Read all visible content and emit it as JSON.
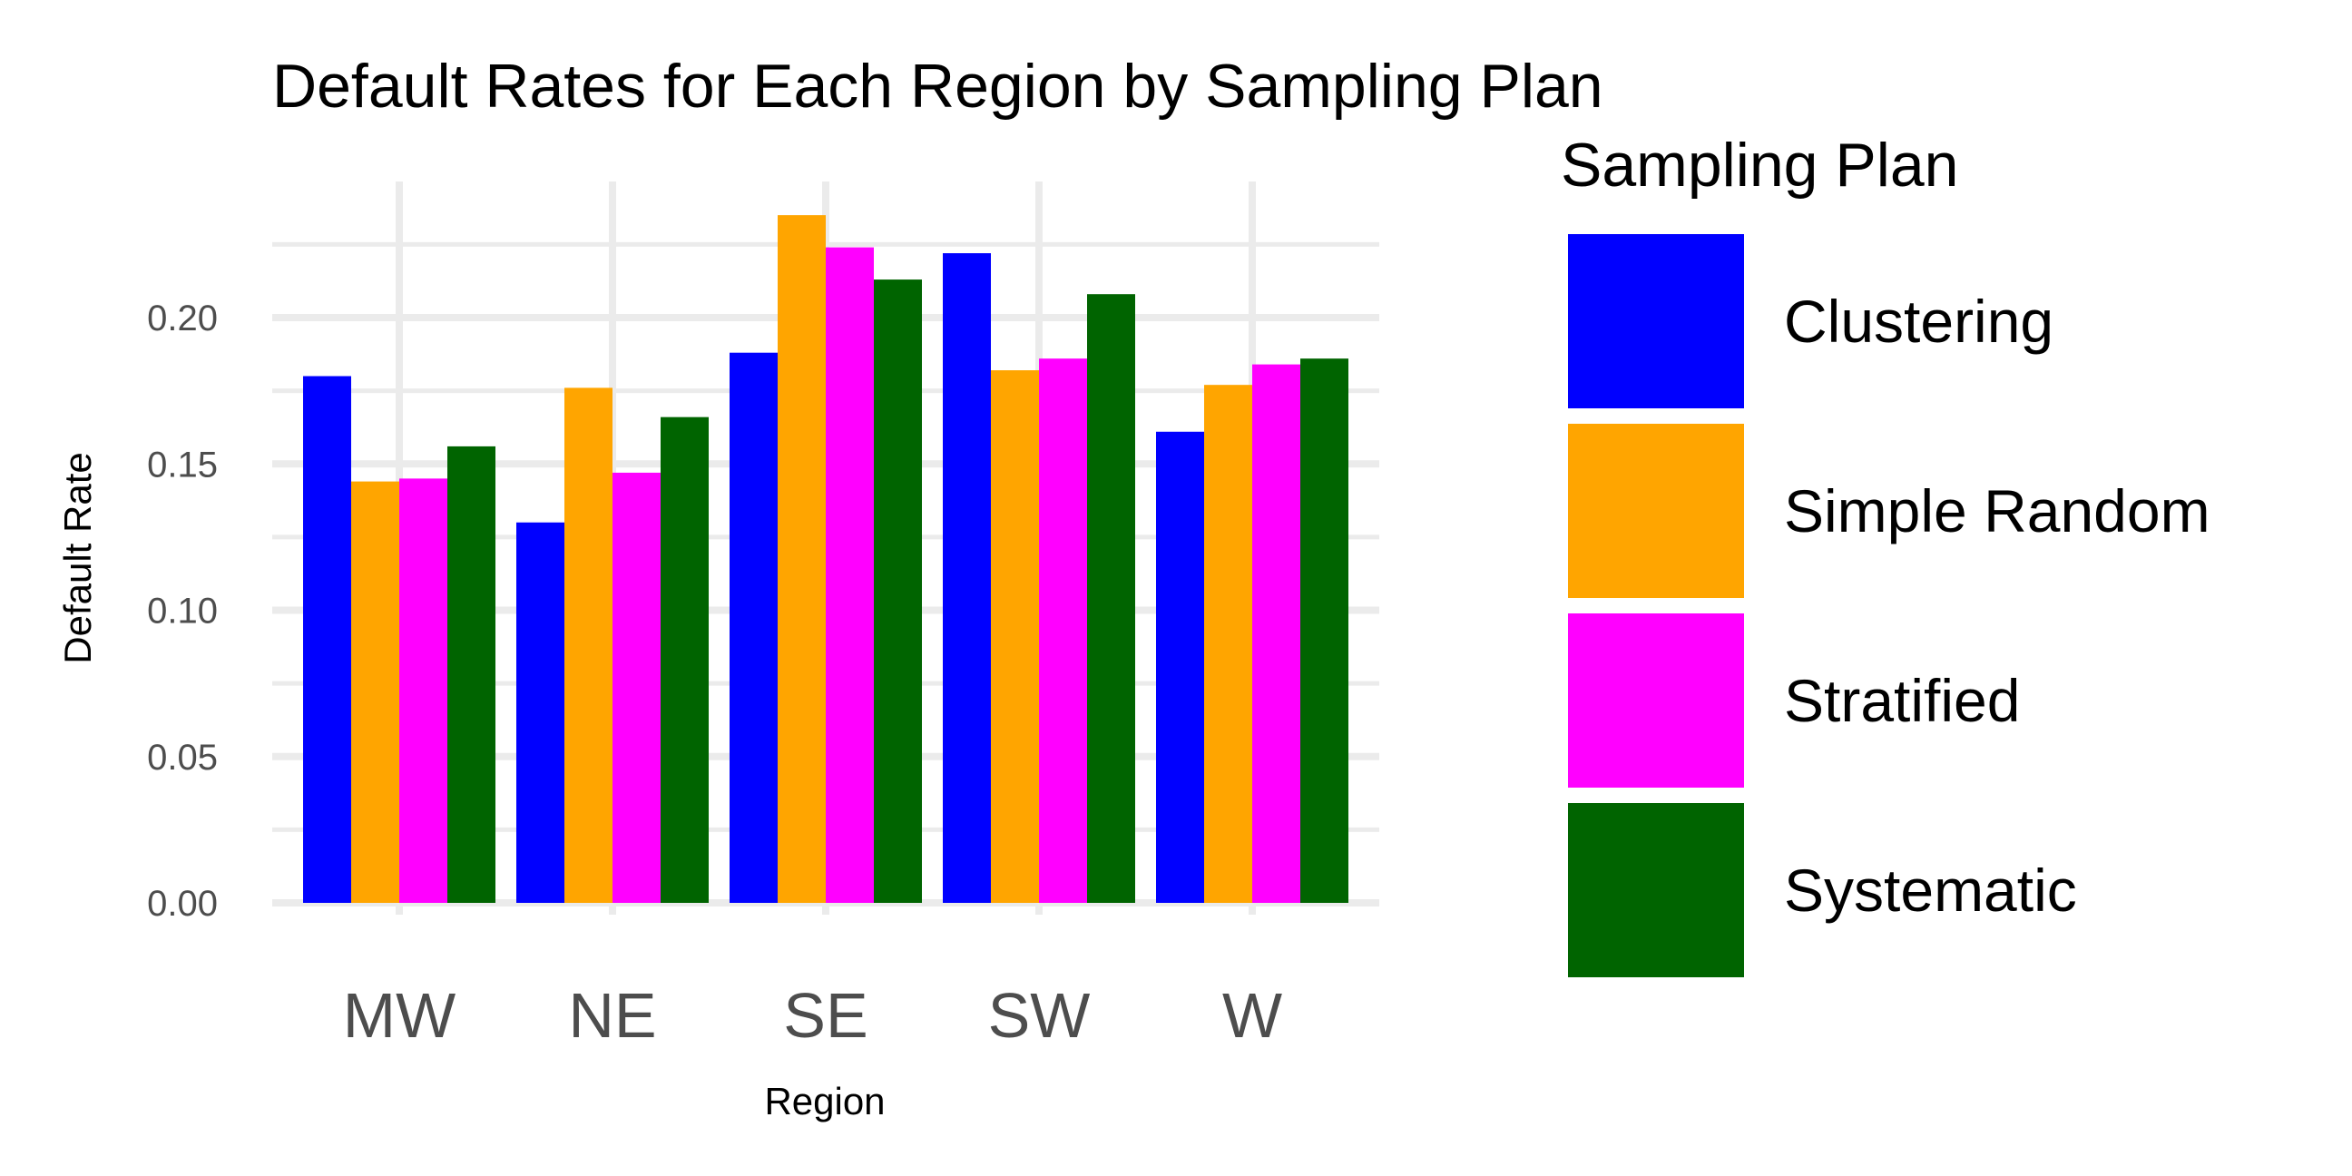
{
  "chart_data": {
    "type": "bar",
    "title": "Default Rates for Each Region by Sampling Plan",
    "xlabel": "Region",
    "ylabel": "Default Rate",
    "categories": [
      "MW",
      "NE",
      "SE",
      "SW",
      "W"
    ],
    "series": [
      {
        "name": "Clustering",
        "color": "#0000FF",
        "values": [
          0.18,
          0.13,
          0.188,
          0.222,
          0.161
        ]
      },
      {
        "name": "Simple Random",
        "color": "#FFA500",
        "values": [
          0.144,
          0.176,
          0.235,
          0.182,
          0.177
        ]
      },
      {
        "name": "Stratified",
        "color": "#FF00FF",
        "values": [
          0.145,
          0.147,
          0.224,
          0.186,
          0.184
        ]
      },
      {
        "name": "Systematic",
        "color": "#006400",
        "values": [
          0.156,
          0.166,
          0.213,
          0.208,
          0.186
        ]
      }
    ],
    "ylim": [
      0,
      0.25
    ],
    "yticks": [
      0.0,
      0.05,
      0.1,
      0.15,
      0.2
    ],
    "ytick_labels": [
      "0.00",
      "0.05",
      "0.10",
      "0.15",
      "0.20"
    ],
    "legend_title": "Sampling Plan",
    "legend_position": "right",
    "grid": true,
    "grid_color": "#EBEBEB",
    "background": "#FFFFFF"
  }
}
